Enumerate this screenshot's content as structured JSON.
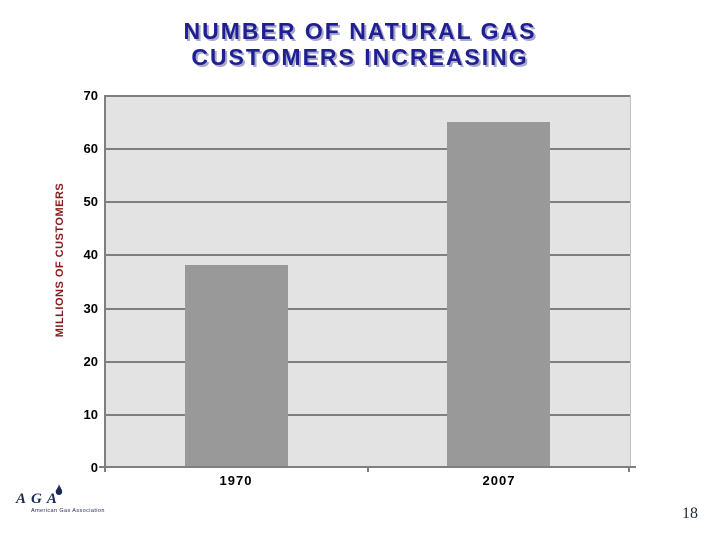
{
  "slide": {
    "title_lines": [
      "NUMBER OF NATURAL GAS",
      "CUSTOMERS INCREASING"
    ],
    "page_number": "18"
  },
  "logo": {
    "acronym": "AGA",
    "caption": "American Gas Association",
    "icon": "flame-icon"
  },
  "colors": {
    "title": "#1f1f93",
    "title_shadow": "#a9a9c9",
    "y_axis_title": "#8b1a1a",
    "bar": "#999999",
    "plot_background": "#e3e3e3",
    "gridline": "#7f7f7f",
    "axis": "#7f7f7f",
    "logo": "#1b2a55",
    "page_number": "#1e2b38"
  },
  "chart_data": {
    "type": "bar",
    "title": "",
    "categories": [
      "1970",
      "2007"
    ],
    "values": [
      38,
      65
    ],
    "xlabel": "",
    "ylabel": "MILLIONS OF CUSTOMERS",
    "ylim": [
      0,
      70
    ],
    "yticks": [
      0,
      10,
      20,
      30,
      40,
      50,
      60,
      70
    ],
    "grid": true,
    "legend": false,
    "bar_width_fraction": 0.392
  }
}
